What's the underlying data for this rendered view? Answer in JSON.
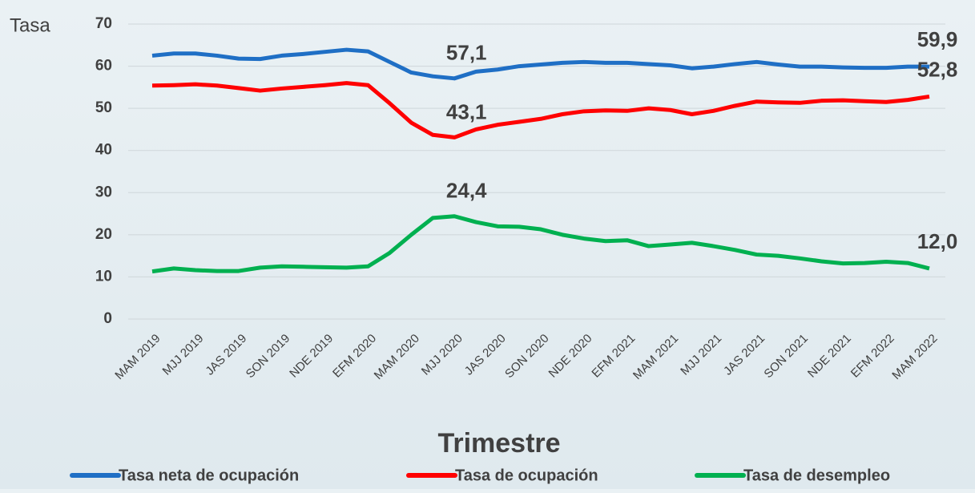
{
  "chart_data": {
    "type": "line",
    "y_axis_label": "Tasa",
    "x_axis_label": "Trimestre",
    "categories": [
      "MAM 2019",
      null,
      "MJJ 2019",
      null,
      "JAS 2019",
      null,
      "SON 2019",
      null,
      "NDE 2019",
      null,
      "EFM 2020",
      null,
      "MAM 2020",
      null,
      "MJJ 2020",
      null,
      "JAS 2020",
      null,
      "SON 2020",
      null,
      "NDE 2020",
      null,
      "EFM 2021",
      null,
      "MAM 2021",
      null,
      "MJJ 2021",
      null,
      "JAS 2021",
      null,
      "SON 2021",
      null,
      "NDE 2021",
      null,
      "EFM 2022",
      null,
      "MAM 2022"
    ],
    "series": [
      {
        "name": "Tasa neta de ocupación",
        "color": "#1f6fc5",
        "values": [
          62.5,
          63.0,
          63.0,
          62.5,
          61.8,
          61.7,
          62.5,
          62.9,
          63.4,
          63.9,
          63.5,
          61.0,
          58.5,
          57.6,
          57.1,
          58.7,
          59.2,
          60.0,
          60.4,
          60.8,
          61.0,
          60.8,
          60.8,
          60.5,
          60.2,
          59.5,
          59.9,
          60.5,
          61.0,
          60.4,
          59.9,
          59.9,
          59.7,
          59.6,
          59.6,
          59.9,
          59.9
        ],
        "value_labels": [
          null,
          null,
          null,
          null,
          null,
          null,
          null,
          null,
          null,
          null,
          null,
          null,
          null,
          null,
          "57,1",
          null,
          null,
          null,
          null,
          null,
          null,
          null,
          null,
          null,
          null,
          null,
          null,
          null,
          null,
          null,
          null,
          null,
          null,
          null,
          null,
          null,
          "59,9"
        ]
      },
      {
        "name": "Tasa de ocupación",
        "color": "#ff0000",
        "values": [
          55.4,
          55.5,
          55.7,
          55.4,
          54.8,
          54.2,
          54.7,
          55.1,
          55.5,
          56.0,
          55.5,
          51.2,
          46.6,
          43.7,
          43.1,
          45.0,
          46.1,
          46.8,
          47.5,
          48.6,
          49.3,
          49.5,
          49.4,
          50.0,
          49.6,
          48.6,
          49.4,
          50.6,
          51.6,
          51.4,
          51.3,
          51.8,
          51.9,
          51.7,
          51.5,
          52.0,
          52.8
        ],
        "value_labels": [
          null,
          null,
          null,
          null,
          null,
          null,
          null,
          null,
          null,
          null,
          null,
          null,
          null,
          null,
          "43,1",
          null,
          null,
          null,
          null,
          null,
          null,
          null,
          null,
          null,
          null,
          null,
          null,
          null,
          null,
          null,
          null,
          null,
          null,
          null,
          null,
          null,
          "52,8"
        ]
      },
      {
        "name": "Tasa de desempleo",
        "color": "#00b050",
        "values": [
          11.3,
          12.0,
          11.6,
          11.4,
          11.4,
          12.2,
          12.5,
          12.4,
          12.3,
          12.2,
          12.5,
          15.7,
          20.0,
          24.0,
          24.4,
          23.0,
          22.0,
          21.9,
          21.3,
          20.0,
          19.1,
          18.5,
          18.7,
          17.3,
          17.7,
          18.1,
          17.3,
          16.4,
          15.3,
          15.0,
          14.4,
          13.7,
          13.2,
          13.3,
          13.6,
          13.3,
          12.0
        ],
        "value_labels": [
          null,
          null,
          null,
          null,
          null,
          null,
          null,
          null,
          null,
          null,
          null,
          null,
          null,
          null,
          "24,4",
          null,
          null,
          null,
          null,
          null,
          null,
          null,
          null,
          null,
          null,
          null,
          null,
          null,
          null,
          null,
          null,
          null,
          null,
          null,
          null,
          null,
          "12,0"
        ]
      }
    ],
    "ylim": [
      0,
      70
    ],
    "yticks": [
      0,
      10,
      20,
      30,
      40,
      50,
      60,
      70
    ],
    "grid": true,
    "legend": "bottom"
  }
}
